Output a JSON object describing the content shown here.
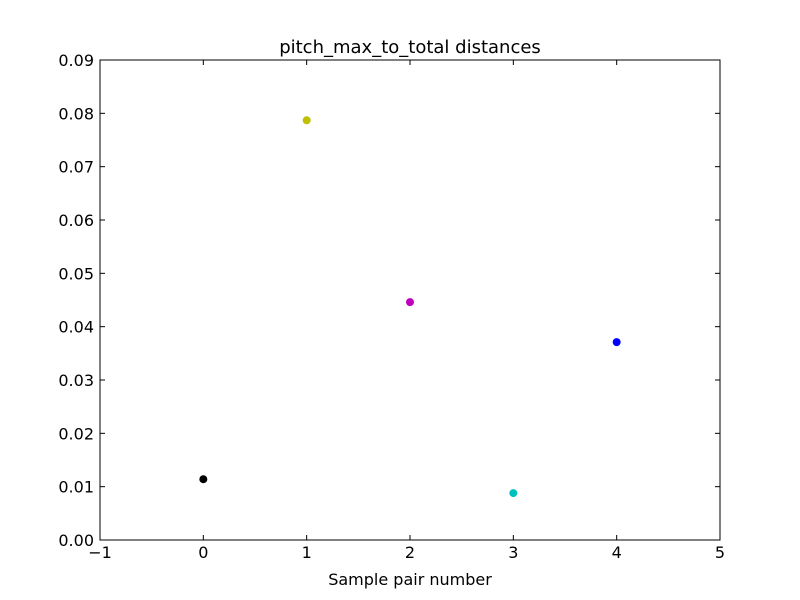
{
  "chart_data": {
    "type": "scatter",
    "title": "pitch_max_to_total distances",
    "xlabel": "Sample pair number",
    "ylabel": "",
    "xlim": [
      -1,
      5
    ],
    "ylim": [
      0.0,
      0.09
    ],
    "x_ticks": [
      -1,
      0,
      1,
      2,
      3,
      4,
      5
    ],
    "x_tick_labels": [
      "−1",
      "0",
      "1",
      "2",
      "3",
      "4",
      "5"
    ],
    "y_ticks": [
      0.0,
      0.01,
      0.02,
      0.03,
      0.04,
      0.05,
      0.06,
      0.07,
      0.08,
      0.09
    ],
    "y_tick_labels": [
      "0.00",
      "0.01",
      "0.02",
      "0.03",
      "0.04",
      "0.05",
      "0.06",
      "0.07",
      "0.08",
      "0.09"
    ],
    "grid": false,
    "points": [
      {
        "x": 0,
        "y": 0.0114,
        "color": "#000000"
      },
      {
        "x": 1,
        "y": 0.0787,
        "color": "#bfbf00"
      },
      {
        "x": 2,
        "y": 0.0446,
        "color": "#bf00bf"
      },
      {
        "x": 3,
        "y": 0.0088,
        "color": "#00bfbf"
      },
      {
        "x": 4,
        "y": 0.0371,
        "color": "#0000ff"
      }
    ]
  }
}
